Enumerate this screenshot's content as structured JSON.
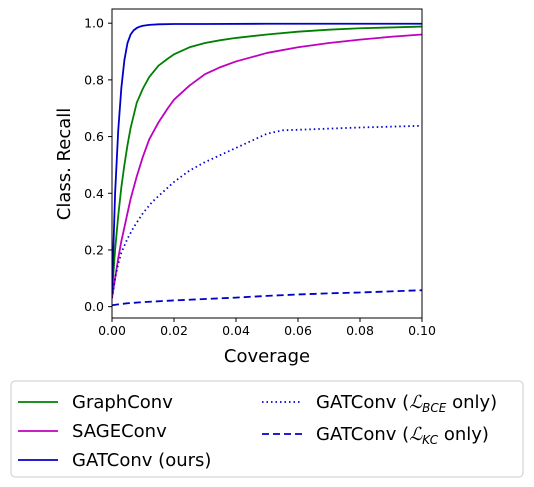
{
  "chart_data": {
    "type": "line",
    "xlabel": "Coverage",
    "ylabel": "Class. Recall",
    "xlim": [
      0.0,
      0.1
    ],
    "ylim": [
      -0.04,
      1.05
    ],
    "xticks": [
      0.0,
      0.02,
      0.04,
      0.06,
      0.08,
      0.1
    ],
    "xtick_labels": [
      "0.00",
      "0.02",
      "0.04",
      "0.06",
      "0.08",
      "0.10"
    ],
    "yticks": [
      0.0,
      0.2,
      0.4,
      0.6,
      0.8,
      1.0
    ],
    "ytick_labels": [
      "0.0",
      "0.2",
      "0.4",
      "0.6",
      "0.8",
      "1.0"
    ],
    "grid": false,
    "legend_placement": "below plot, two columns",
    "series": [
      {
        "name": "GraphConv",
        "color": "#008000",
        "style": "solid",
        "x": [
          0.0,
          0.001,
          0.002,
          0.003,
          0.004,
          0.005,
          0.006,
          0.008,
          0.01,
          0.012,
          0.015,
          0.018,
          0.02,
          0.025,
          0.03,
          0.035,
          0.04,
          0.05,
          0.06,
          0.07,
          0.08,
          0.09,
          0.1
        ],
        "values": [
          0.05,
          0.2,
          0.32,
          0.42,
          0.5,
          0.57,
          0.63,
          0.72,
          0.77,
          0.81,
          0.85,
          0.875,
          0.89,
          0.915,
          0.93,
          0.94,
          0.948,
          0.96,
          0.97,
          0.977,
          0.982,
          0.985,
          0.988
        ]
      },
      {
        "name": "SAGEConv",
        "color": "#bf00bf",
        "style": "solid",
        "x": [
          0.0,
          0.001,
          0.002,
          0.003,
          0.004,
          0.005,
          0.006,
          0.008,
          0.01,
          0.012,
          0.015,
          0.018,
          0.02,
          0.025,
          0.03,
          0.035,
          0.04,
          0.045,
          0.05,
          0.06,
          0.07,
          0.08,
          0.09,
          0.1
        ],
        "values": [
          0.03,
          0.1,
          0.17,
          0.23,
          0.28,
          0.33,
          0.38,
          0.46,
          0.53,
          0.59,
          0.65,
          0.7,
          0.73,
          0.78,
          0.82,
          0.845,
          0.865,
          0.88,
          0.895,
          0.915,
          0.93,
          0.942,
          0.952,
          0.96
        ]
      },
      {
        "name": "GATConv (ours)",
        "color": "#0000cc",
        "style": "solid",
        "x": [
          0.0,
          0.001,
          0.002,
          0.003,
          0.004,
          0.005,
          0.006,
          0.007,
          0.008,
          0.009,
          0.01,
          0.012,
          0.015,
          0.02,
          0.03,
          0.05,
          0.07,
          0.1
        ],
        "values": [
          0.05,
          0.4,
          0.62,
          0.77,
          0.87,
          0.93,
          0.96,
          0.975,
          0.983,
          0.988,
          0.991,
          0.994,
          0.996,
          0.997,
          0.997,
          0.998,
          0.998,
          0.998
        ]
      },
      {
        "name": "GATConv (ℒ_BCE only)",
        "name_main": "GATConv (",
        "name_script": "ℒ",
        "name_sub": "BCE",
        "name_tail": " only)",
        "color": "#0000cc",
        "style": "dotted",
        "x": [
          0.0,
          0.001,
          0.002,
          0.003,
          0.005,
          0.007,
          0.01,
          0.013,
          0.016,
          0.02,
          0.025,
          0.03,
          0.035,
          0.04,
          0.045,
          0.05,
          0.055,
          0.06,
          0.07,
          0.08,
          0.09,
          0.1
        ],
        "values": [
          0.03,
          0.1,
          0.15,
          0.19,
          0.24,
          0.28,
          0.33,
          0.37,
          0.4,
          0.44,
          0.48,
          0.51,
          0.535,
          0.56,
          0.585,
          0.61,
          0.622,
          0.624,
          0.628,
          0.632,
          0.635,
          0.638
        ]
      },
      {
        "name": "GATConv (ℒ_KC only)",
        "name_main": "GATConv (",
        "name_script": "ℒ",
        "name_sub": "KC",
        "name_tail": " only)",
        "color": "#0000cc",
        "style": "dashed",
        "x": [
          0.0,
          0.002,
          0.005,
          0.01,
          0.02,
          0.03,
          0.04,
          0.05,
          0.06,
          0.07,
          0.08,
          0.09,
          0.1
        ],
        "values": [
          0.005,
          0.008,
          0.012,
          0.016,
          0.022,
          0.027,
          0.032,
          0.038,
          0.043,
          0.047,
          0.05,
          0.054,
          0.058
        ]
      }
    ]
  }
}
